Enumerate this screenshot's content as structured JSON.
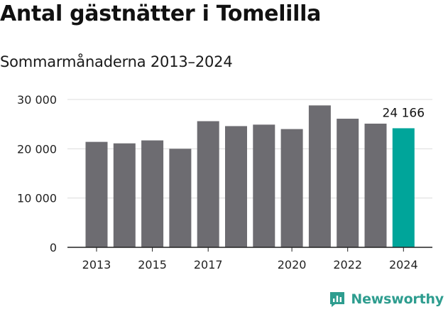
{
  "title": "Antal gästnätter i Tomelilla",
  "subtitle": "Sommarmånaderna 2013–2024",
  "brand": {
    "name": "Newsworthy",
    "color": "#2e9d8f",
    "icon": "newsworthy-logo-icon"
  },
  "colors": {
    "bar": "#6d6c71",
    "highlight": "#00a59a",
    "grid": "#dcdcdc",
    "axis": "#222222"
  },
  "chart_data": {
    "type": "bar",
    "title": "Antal gästnätter i Tomelilla",
    "subtitle": "Sommarmånaderna 2013–2024",
    "categories": [
      "2013",
      "2014",
      "2015",
      "2016",
      "2017",
      "2018",
      "2019",
      "2020",
      "2021",
      "2022",
      "2023",
      "2024"
    ],
    "values": [
      21400,
      21100,
      21700,
      20000,
      25600,
      24600,
      24900,
      24000,
      28800,
      26100,
      25100,
      24166
    ],
    "highlight_index": 11,
    "x_tick_labels": [
      "2013",
      "2015",
      "2017",
      "2020",
      "2022",
      "2024"
    ],
    "y_ticks": [
      0,
      10000,
      20000,
      30000
    ],
    "y_tick_labels": [
      "0",
      "10 000",
      "20 000",
      "30 000"
    ],
    "data_labels": [
      {
        "index": 11,
        "text": "24 166"
      }
    ],
    "ylim": [
      0,
      30000
    ],
    "grid": "horizontal",
    "xlabel": "",
    "ylabel": ""
  }
}
